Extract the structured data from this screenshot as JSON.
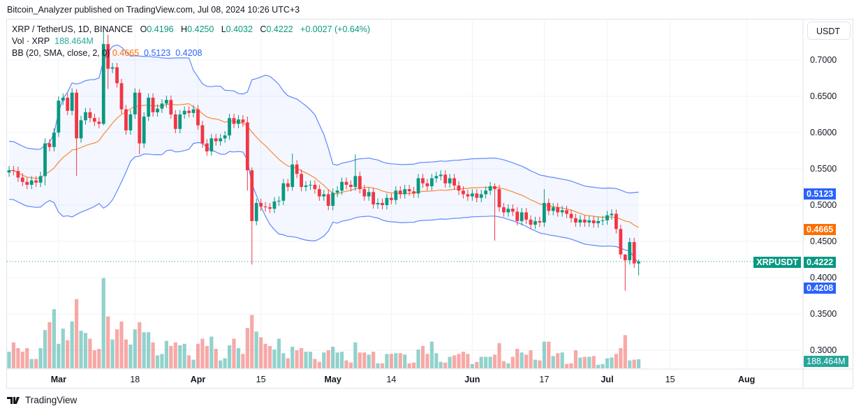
{
  "publisher_line": "Bitcoin_Analyzer published on TradingView.com, Jul 08, 2024 10:26 UTC+3",
  "legend": {
    "symbol": "XRP / TetherUS, 1D, BINANCE",
    "o_label": "O",
    "o": "0.4196",
    "h_label": "H",
    "h": "0.4250",
    "l_label": "L",
    "l": "0.4032",
    "c_label": "C",
    "c": "0.4222",
    "change": "+0.0027 (+0.64%)",
    "vol_label": "Vol · XRP",
    "vol": "188.464M",
    "bb_label": "BB (20, SMA, close, 2, 0)",
    "bb_basis": "0.4665",
    "bb_upper": "0.5123",
    "bb_lower": "0.4208"
  },
  "price_axis": {
    "unit_button": "USDT",
    "ticks": [
      "0.7000",
      "0.6500",
      "0.6000",
      "0.5500",
      "0.5000",
      "0.4500",
      "0.4000",
      "0.3500",
      "0.3000"
    ],
    "labels": {
      "bb_upper": "0.5123",
      "bb_basis": "0.4665",
      "symbol_tag": "XRPUSDT",
      "last_price": "0.4222",
      "bb_lower": "0.4208",
      "volume": "188.464M"
    }
  },
  "time_axis": {
    "ticks": [
      {
        "label": "Mar",
        "date": "2024-03-01"
      },
      {
        "label": "18",
        "date": "2024-03-18"
      },
      {
        "label": "Apr",
        "date": "2024-04-01"
      },
      {
        "label": "15",
        "date": "2024-04-15"
      },
      {
        "label": "May",
        "date": "2024-05-01"
      },
      {
        "label": "14",
        "date": "2024-05-14"
      },
      {
        "label": "Jun",
        "date": "2024-06-01"
      },
      {
        "label": "17",
        "date": "2024-06-17"
      },
      {
        "label": "Jul",
        "date": "2024-07-01"
      },
      {
        "label": "15",
        "date": "2024-07-15"
      },
      {
        "label": "Aug",
        "date": "2024-08-01"
      }
    ]
  },
  "footer": {
    "brand": "TradingView"
  },
  "colors": {
    "up": "#089981",
    "down": "#f23645",
    "vol_up": "#26a69a",
    "vol_down": "#ef5350",
    "bb_band": "#2962ff",
    "bb_basis": "#ff6d00",
    "grid": "#f0f3fa"
  },
  "chart_data": {
    "type": "candlestick",
    "symbol": "XRPUSDT",
    "interval": "1D",
    "ylim": [
      0.28,
      0.75
    ],
    "grid": true,
    "indicator": {
      "name": "Bollinger Bands",
      "length": 20,
      "type": "SMA",
      "source": "close",
      "mult": 2,
      "last": {
        "basis": 0.4665,
        "upper": 0.5123,
        "lower": 0.4208
      }
    },
    "first_open": 0.545,
    "dates_from": "2024-02-19",
    "dates_to": "2024-07-08",
    "close": [
      0.548,
      0.547,
      0.538,
      0.532,
      0.528,
      0.534,
      0.531,
      0.54,
      0.585,
      0.58,
      0.6,
      0.644,
      0.648,
      0.63,
      0.655,
      0.592,
      0.617,
      0.628,
      0.62,
      0.615,
      0.612,
      0.722,
      0.688,
      0.69,
      0.668,
      0.632,
      0.603,
      0.625,
      0.655,
      0.585,
      0.622,
      0.648,
      0.628,
      0.633,
      0.64,
      0.645,
      0.625,
      0.605,
      0.625,
      0.63,
      0.627,
      0.632,
      0.61,
      0.585,
      0.574,
      0.592,
      0.588,
      0.592,
      0.596,
      0.62,
      0.612,
      0.618,
      0.614,
      0.548,
      0.478,
      0.503,
      0.498,
      0.497,
      0.495,
      0.505,
      0.506,
      0.53,
      0.525,
      0.556,
      0.543,
      0.525,
      0.527,
      0.528,
      0.522,
      0.512,
      0.515,
      0.499,
      0.517,
      0.52,
      0.532,
      0.528,
      0.525,
      0.54,
      0.522,
      0.512,
      0.518,
      0.501,
      0.503,
      0.5,
      0.51,
      0.507,
      0.52,
      0.515,
      0.522,
      0.519,
      0.516,
      0.537,
      0.53,
      0.526,
      0.537,
      0.54,
      0.542,
      0.53,
      0.537,
      0.527,
      0.52,
      0.515,
      0.512,
      0.516,
      0.51,
      0.515,
      0.52,
      0.526,
      0.522,
      0.497,
      0.49,
      0.495,
      0.491,
      0.478,
      0.49,
      0.48,
      0.473,
      0.478,
      0.476,
      0.503,
      0.492,
      0.497,
      0.49,
      0.493,
      0.488,
      0.482,
      0.476,
      0.48,
      0.476,
      0.479,
      0.475,
      0.478,
      0.479,
      0.486,
      0.488,
      0.467,
      0.432,
      0.424,
      0.449,
      0.4196,
      0.4222
    ],
    "wicks": {
      "2024-02-27": [
        0.592,
        0.527
      ],
      "2024-03-05": [
        0.66,
        0.54
      ],
      "2024-03-11": [
        0.745,
        0.61
      ],
      "2024-03-12": [
        0.735,
        0.66
      ],
      "2024-03-19": [
        0.66,
        0.57
      ],
      "2024-04-12": [
        0.622,
        0.52
      ],
      "2024-04-13": [
        0.552,
        0.418
      ],
      "2024-04-22": [
        0.571,
        0.52
      ],
      "2024-05-06": [
        0.57,
        0.52
      ],
      "2024-06-06": [
        0.53,
        0.451
      ],
      "2024-06-17": [
        0.522,
        0.47
      ],
      "2024-07-05": [
        0.432,
        0.382
      ],
      "2024-07-08": [
        0.425,
        0.4032
      ]
    },
    "volume_unit": "M",
    "volume": [
      345,
      540,
      420,
      345,
      420,
      195,
      195,
      420,
      795,
      960,
      1230,
      510,
      825,
      585,
      975,
      1440,
      780,
      735,
      615,
      375,
      405,
      1875,
      1080,
      600,
      810,
      975,
      600,
      495,
      810,
      960,
      750,
      750,
      540,
      270,
      300,
      570,
      465,
      540,
      480,
      510,
      270,
      180,
      510,
      615,
      465,
      660,
      405,
      165,
      210,
      480,
      615,
      420,
      300,
      840,
      1110,
      765,
      645,
      510,
      465,
      390,
      615,
      315,
      210,
      450,
      375,
      420,
      345,
      345,
      195,
      135,
      330,
      375,
      450,
      330,
      345,
      165,
      120,
      540,
      330,
      330,
      285,
      345,
      105,
      105,
      300,
      300,
      315,
      315,
      285,
      105,
      120,
      390,
      465,
      300,
      555,
      315,
      135,
      120,
      240,
      270,
      300,
      345,
      300,
      90,
      135,
      240,
      240,
      240,
      285,
      525,
      150,
      105,
      240,
      405,
      330,
      285,
      375,
      180,
      165,
      555,
      555,
      255,
      315,
      330,
      90,
      105,
      375,
      225,
      240,
      240,
      255,
      75,
      90,
      210,
      225,
      300,
      420,
      690,
      165,
      180,
      188.464
    ]
  }
}
